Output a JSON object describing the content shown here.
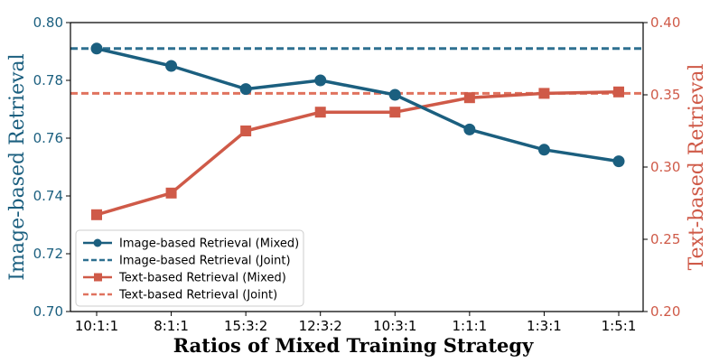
{
  "chart_data": {
    "type": "line",
    "title": "",
    "xlabel": "Ratios of Mixed Training Strategy",
    "ylabel_left": "Image-based Retrieval",
    "ylabel_right": "Text-based Retrieval",
    "categories": [
      "10:1:1",
      "8:1:1",
      "15:3:2",
      "12:3:2",
      "10:3:1",
      "1:1:1",
      "1:3:1",
      "1:5:1"
    ],
    "ylim_left": [
      0.7,
      0.8
    ],
    "ylim_right": [
      0.2,
      0.4
    ],
    "yticks_left": [
      "0.70",
      "0.72",
      "0.74",
      "0.76",
      "0.78",
      "0.80"
    ],
    "yticks_right": [
      "0.20",
      "0.25",
      "0.30",
      "0.35",
      "0.40"
    ],
    "colors": {
      "image": "#1b5f7f",
      "text": "#cf5a48",
      "image_dash": "#2e7090",
      "text_dash": "#e0735f"
    },
    "series": [
      {
        "name": "Image-based Retrieval (Mixed)",
        "axis": "left",
        "style": "solid-circle",
        "values": [
          0.791,
          0.785,
          0.777,
          0.78,
          0.775,
          0.763,
          0.756,
          0.752
        ]
      },
      {
        "name": "Image-based Retrieval (Joint)",
        "axis": "left",
        "style": "dashed",
        "value": 0.791
      },
      {
        "name": "Text-based Retrieval (Mixed)",
        "axis": "right",
        "style": "solid-square",
        "values": [
          0.267,
          0.282,
          0.325,
          0.338,
          0.338,
          0.348,
          0.351,
          0.352
        ]
      },
      {
        "name": "Text-based Retrieval (Joint)",
        "axis": "right",
        "style": "dashed",
        "value": 0.351
      }
    ],
    "legend_position": "lower-left"
  }
}
